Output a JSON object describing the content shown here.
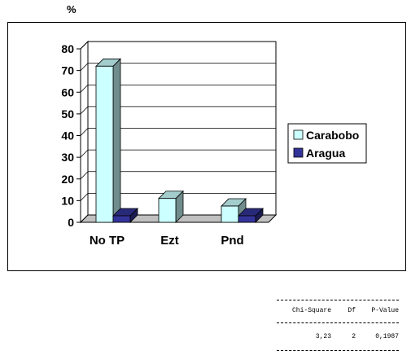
{
  "unit_label": "%",
  "chart_data": {
    "type": "bar",
    "categories": [
      "No TP",
      "Ezt",
      "Pnd"
    ],
    "series": [
      {
        "name": "Carabobo",
        "values": [
          72,
          11,
          7.5
        ],
        "color": "#CCFFFF"
      },
      {
        "name": "Aragua",
        "values": [
          3,
          0,
          3
        ],
        "color": "#333399"
      }
    ],
    "ylim": [
      0,
      80
    ],
    "yticks": [
      0,
      10,
      20,
      30,
      40,
      50,
      60,
      70,
      80
    ],
    "grid": true,
    "three_d": true,
    "legend": "right",
    "title": "",
    "xlabel": "",
    "ylabel": "%"
  },
  "stats_table": {
    "headers": [
      "Chi-Square",
      "Df",
      "P-Value"
    ],
    "values": [
      "3,23",
      "2",
      "0,1987"
    ]
  }
}
